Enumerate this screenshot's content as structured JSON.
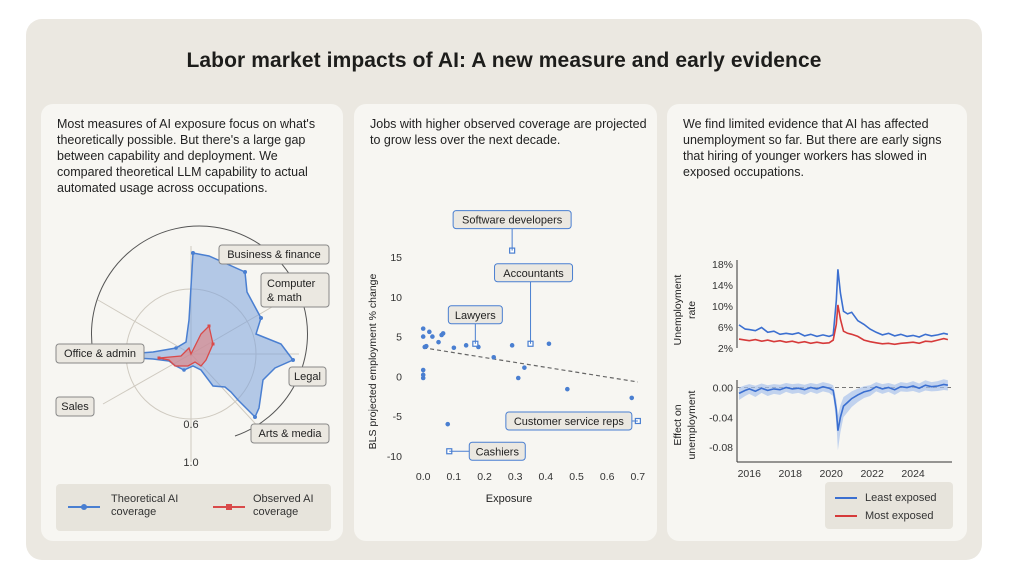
{
  "title": "Labor market impacts of AI: A new measure and early evidence",
  "panel1": {
    "description": "Most measures of AI exposure focus on what's theoretically possible. But there's a large gap between capability and deployment. We compared theoretical LLM capability to actual automated usage across occupations.",
    "labels": {
      "business": "Business & finance",
      "computer_1": "Computer",
      "computer_2": "& math",
      "office": "Office & admin",
      "legal": "Legal",
      "sales": "Sales",
      "arts": "Arts & media",
      "tick_06": "0.6",
      "tick_10": "1.0"
    },
    "legend": {
      "theoretical_1": "Theoretical AI",
      "theoretical_2": "coverage",
      "observed_1": "Observed AI",
      "observed_2": "coverage"
    },
    "colors": {
      "theoretical": "#4a7fd1",
      "observed": "#d94a4a"
    }
  },
  "panel2": {
    "description": "Jobs with higher observed coverage are projected to grow less over the next decade.",
    "annotations": {
      "software": "Software developers",
      "accountants": "Accountants",
      "lawyers": "Lawyers",
      "customer": "Customer service reps",
      "cashiers": "Cashiers"
    },
    "color": "#4a7fd1"
  },
  "panel3": {
    "description": "We find limited evidence that AI has affected unemployment so far. But there are early signs that hiring of younger workers has slowed in exposed occupations.",
    "legend": {
      "least": "Least exposed",
      "most": "Most exposed"
    },
    "colors": {
      "least": "#3b6fd0",
      "most": "#d63a3a"
    }
  },
  "chart_data": [
    {
      "type": "radar",
      "axes": [
        "Business & finance",
        "Computer & math",
        "Legal",
        "Arts & media",
        "Sales",
        "Office & admin"
      ],
      "radial_ticks": [
        "0.6",
        "1.0"
      ],
      "series": [
        {
          "name": "Theoretical AI coverage",
          "values": [
            0.94,
            0.93,
            0.78,
            0.75,
            0.55,
            0.9
          ]
        },
        {
          "name": "Observed AI coverage",
          "values": [
            0.2,
            0.35,
            0.1,
            0.12,
            0.1,
            0.2
          ]
        }
      ]
    },
    {
      "type": "scatter",
      "xlabel": "Exposure",
      "ylabel": "BLS projected employment % change",
      "xlim": [
        -0.03,
        0.72
      ],
      "ylim": [
        -11,
        16
      ],
      "xticks": [
        "0.0",
        "0.1",
        "0.2",
        "0.3",
        "0.4",
        "0.5",
        "0.6",
        "0.7"
      ],
      "yticks": [
        "15",
        "10",
        "5",
        "0",
        "-5",
        "-10"
      ],
      "trendline": {
        "x": [
          0.0,
          0.7
        ],
        "y": [
          3.6,
          -0.7
        ]
      },
      "points": [
        {
          "x": 0.0,
          "y": 6.0
        },
        {
          "x": 0.0,
          "y": 5.0
        },
        {
          "x": 0.005,
          "y": 3.7
        },
        {
          "x": 0.0,
          "y": 0.8
        },
        {
          "x": 0.0,
          "y": 0.2
        },
        {
          "x": 0.0,
          "y": -0.2
        },
        {
          "x": 0.01,
          "y": 3.8
        },
        {
          "x": 0.02,
          "y": 5.6
        },
        {
          "x": 0.03,
          "y": 5.0
        },
        {
          "x": 0.05,
          "y": 4.3
        },
        {
          "x": 0.06,
          "y": 5.2
        },
        {
          "x": 0.065,
          "y": 5.4
        },
        {
          "x": 0.08,
          "y": -6.0
        },
        {
          "x": 0.1,
          "y": 3.6
        },
        {
          "x": 0.14,
          "y": 3.9
        },
        {
          "x": 0.17,
          "y": 4.1
        },
        {
          "x": 0.18,
          "y": 3.7
        },
        {
          "x": 0.23,
          "y": 2.4
        },
        {
          "x": 0.29,
          "y": 3.9
        },
        {
          "x": 0.31,
          "y": -0.2
        },
        {
          "x": 0.33,
          "y": 1.1
        },
        {
          "x": 0.41,
          "y": 4.1
        },
        {
          "x": 0.47,
          "y": -1.6
        },
        {
          "x": 0.68,
          "y": -2.7
        }
      ],
      "annotated": [
        {
          "label": "Software developers",
          "x": 0.29,
          "y": 15.8
        },
        {
          "label": "Accountants",
          "x": 0.35,
          "y": 4.1
        },
        {
          "label": "Lawyers",
          "x": 0.17,
          "y": 4.1
        },
        {
          "label": "Customer service reps",
          "x": 0.7,
          "y": -5.6
        },
        {
          "label": "Cashiers",
          "x": 0.085,
          "y": -9.4
        }
      ]
    },
    {
      "type": "line",
      "ylabel": "Unemployment rate",
      "yticks": [
        "18%",
        "14%",
        "10%",
        "6%",
        "2%"
      ],
      "ylim": [
        2,
        18
      ],
      "x": [
        2015.5,
        2015.8,
        2016.0,
        2016.3,
        2016.6,
        2016.9,
        2017.2,
        2017.5,
        2017.8,
        2018.1,
        2018.4,
        2018.7,
        2019.0,
        2019.3,
        2019.6,
        2019.9,
        2020.1,
        2020.25,
        2020.33,
        2020.45,
        2020.6,
        2020.8,
        2021.0,
        2021.3,
        2021.6,
        2021.9,
        2022.2,
        2022.5,
        2022.8,
        2023.1,
        2023.4,
        2023.7,
        2024.0,
        2024.3,
        2024.6,
        2024.9,
        2025.2,
        2025.5,
        2025.7
      ],
      "series": [
        {
          "name": "Least exposed",
          "values": [
            6.4,
            5.6,
            5.5,
            5.3,
            5.9,
            5.0,
            5.2,
            4.6,
            4.8,
            4.6,
            4.9,
            4.3,
            4.6,
            4.2,
            4.5,
            4.2,
            4.5,
            11.0,
            17.0,
            12.5,
            9.0,
            8.5,
            8.8,
            7.2,
            6.5,
            5.6,
            5.0,
            4.5,
            4.8,
            4.3,
            4.6,
            4.2,
            4.4,
            4.1,
            4.6,
            4.3,
            4.5,
            4.8,
            4.6
          ]
        },
        {
          "name": "Most exposed",
          "values": [
            3.7,
            3.5,
            3.4,
            3.6,
            3.3,
            3.5,
            3.2,
            3.4,
            3.1,
            3.3,
            3.0,
            3.2,
            2.9,
            3.1,
            2.9,
            3.0,
            3.5,
            6.5,
            10.2,
            7.5,
            5.2,
            4.8,
            4.6,
            4.2,
            3.5,
            3.2,
            3.0,
            2.8,
            2.9,
            2.7,
            2.9,
            3.0,
            3.1,
            2.9,
            3.3,
            3.2,
            3.5,
            3.8,
            3.6
          ]
        }
      ]
    },
    {
      "type": "line",
      "ylabel": "Effect on unemployment",
      "yticks": [
        "0.00",
        "-0.04",
        "-0.08"
      ],
      "ylim": [
        -0.1,
        0.01
      ],
      "xlabel_ticks": [
        "2016",
        "2018",
        "2020",
        "2022",
        "2024"
      ],
      "x": [
        2015.5,
        2015.8,
        2016.0,
        2016.3,
        2016.6,
        2016.9,
        2017.2,
        2017.5,
        2017.8,
        2018.1,
        2018.4,
        2018.7,
        2019.0,
        2019.3,
        2019.6,
        2019.9,
        2020.1,
        2020.25,
        2020.33,
        2020.45,
        2020.6,
        2020.8,
        2021.0,
        2021.3,
        2021.6,
        2021.9,
        2022.2,
        2022.5,
        2022.8,
        2023.1,
        2023.4,
        2023.7,
        2024.0,
        2024.3,
        2024.6,
        2024.9,
        2025.2,
        2025.5,
        2025.7
      ],
      "series": [
        {
          "name": "Effect on unemployment",
          "values": [
            -0.008,
            -0.004,
            -0.002,
            -0.005,
            -0.001,
            -0.004,
            -0.002,
            -0.003,
            0.0,
            -0.002,
            -0.001,
            -0.003,
            0.0,
            -0.002,
            0.001,
            -0.001,
            -0.004,
            -0.03,
            -0.058,
            -0.04,
            -0.025,
            -0.02,
            -0.015,
            -0.01,
            -0.006,
            -0.004,
            0.001,
            -0.002,
            0.0,
            -0.003,
            0.001,
            0.0,
            0.002,
            -0.001,
            0.003,
            0.001,
            0.002,
            0.004,
            0.003
          ]
        }
      ],
      "reference_line": 0.0
    }
  ]
}
